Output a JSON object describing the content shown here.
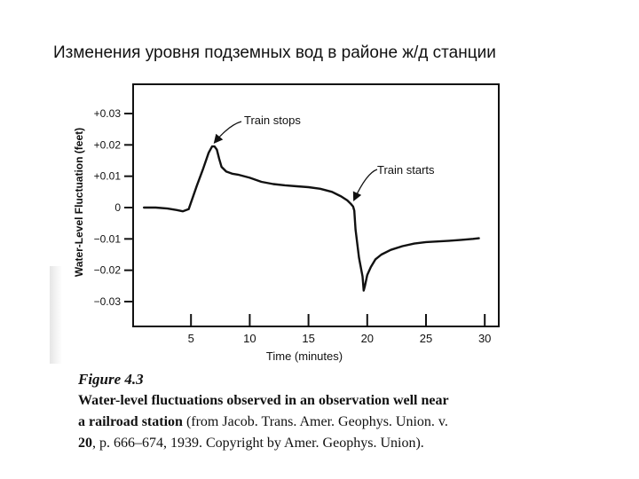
{
  "slide": {
    "title": "Изменения уровня подземных вод в районе ж/д станции"
  },
  "chart_data": {
    "type": "line",
    "title": "",
    "xlabel": "Time (minutes)",
    "ylabel": "Water-Level Fluctuation (feet)",
    "xlim": [
      0,
      30
    ],
    "ylim": [
      -0.035,
      0.035
    ],
    "x_ticks": [
      5,
      10,
      15,
      20,
      25,
      30
    ],
    "x_tick_labels": [
      "5",
      "10",
      "15",
      "20",
      "25",
      "30"
    ],
    "y_ticks": [
      0.03,
      0.02,
      0.01,
      0,
      -0.01,
      -0.02,
      -0.03
    ],
    "y_tick_labels": [
      "+0.03",
      "+0.02",
      "+0.01",
      "0",
      "−0.01",
      "−0.02",
      "−0.03"
    ],
    "grid": false,
    "series": [
      {
        "name": "",
        "color": "#111111",
        "x": [
          1.0,
          2.0,
          3.0,
          3.8,
          4.3,
          4.8,
          5.5,
          6.0,
          6.5,
          6.8,
          7.0,
          7.2,
          7.4,
          7.6,
          8.0,
          8.5,
          9.0,
          10.0,
          11.0,
          12.0,
          13.0,
          14.0,
          15.0,
          16.0,
          17.0,
          17.8,
          18.3,
          18.6,
          18.8,
          18.9,
          19.0,
          19.3,
          19.6,
          19.7,
          19.8,
          20.0,
          20.3,
          20.7,
          21.2,
          22.0,
          23.0,
          24.0,
          25.0,
          26.0,
          27.0,
          28.0,
          29.0,
          29.5
        ],
        "y": [
          0.0,
          0.0,
          -0.0003,
          -0.0008,
          -0.0012,
          -0.0005,
          0.007,
          0.012,
          0.0175,
          0.0195,
          0.0195,
          0.0185,
          0.0155,
          0.013,
          0.0115,
          0.0108,
          0.0105,
          0.0095,
          0.0082,
          0.0075,
          0.0071,
          0.0068,
          0.0065,
          0.006,
          0.005,
          0.0035,
          0.0023,
          0.0012,
          0.0003,
          -0.001,
          -0.007,
          -0.016,
          -0.022,
          -0.0265,
          -0.025,
          -0.0215,
          -0.019,
          -0.0165,
          -0.015,
          -0.0135,
          -0.0123,
          -0.0115,
          -0.011,
          -0.0108,
          -0.0106,
          -0.0103,
          -0.01,
          -0.0098
        ]
      }
    ],
    "annotations": [
      {
        "text": "Train stops",
        "x": 6.9,
        "y": 0.0198
      },
      {
        "text": "Train starts",
        "x": 18.75,
        "y": 0.0015
      }
    ]
  },
  "caption": {
    "figure_label": "Figure 4.3",
    "line1_bold": "Water-level fluctuations observed in an observation well near",
    "line2_bold": "a railroad station",
    "line2_rest": " (from Jacob. Trans. Amer. Geophys. Union. v.",
    "line3_bold": "20",
    "line3_rest": ", p. 666–674, 1939. Copyright by Amer. Geophys. Union)."
  }
}
